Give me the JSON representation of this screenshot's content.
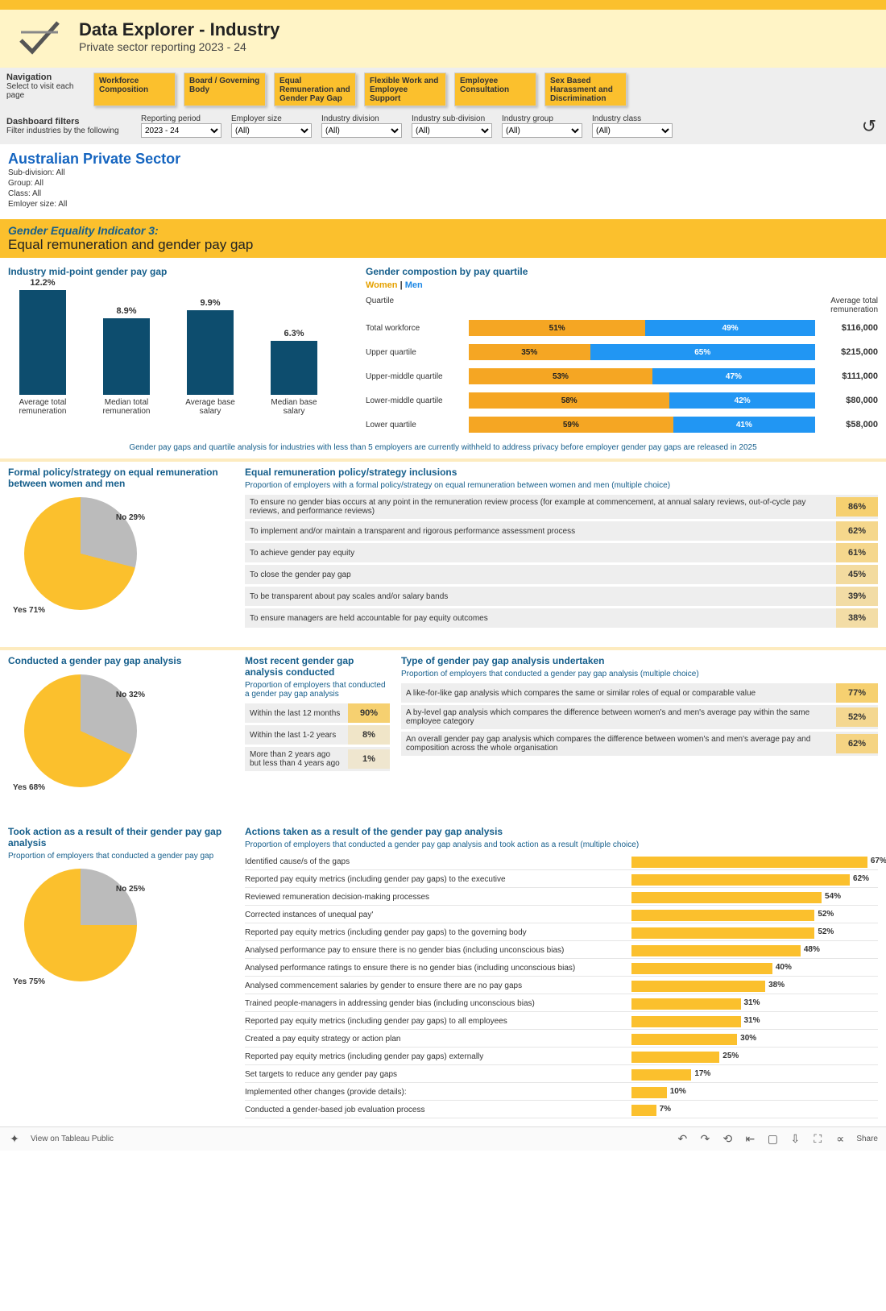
{
  "header": {
    "title": "Data Explorer - Industry",
    "subtitle": "Private sector reporting 2023 - 24"
  },
  "nav": {
    "label_title": "Navigation",
    "label_sub": "Select to visit each page",
    "tabs": [
      "Workforce Composition",
      "Board / Governing Body",
      "Equal Remuneration and Gender Pay Gap",
      "Flexible Work and Employee Support",
      "Employee Consultation",
      "Sex Based Harassment and Discrimination"
    ]
  },
  "filters": {
    "label_title": "Dashboard filters",
    "label_sub": "Filter industries by the following",
    "items": [
      {
        "label": "Reporting period",
        "value": "2023 - 24"
      },
      {
        "label": "Employer size",
        "value": "(All)"
      },
      {
        "label": "Industry division",
        "value": "(All)"
      },
      {
        "label": "Industry sub-division",
        "value": "(All)"
      },
      {
        "label": "Industry group",
        "value": "(All)"
      },
      {
        "label": "Industry class",
        "value": "(All)"
      }
    ]
  },
  "sector": {
    "title": "Australian Private Sector",
    "lines": [
      "Sub-division: All",
      "Group: All",
      "Class: All",
      "Emloyer size: All"
    ]
  },
  "gei": {
    "title": "Gender Equality Indicator 3:",
    "sub": "Equal remuneration and gender pay gap"
  },
  "midpoint": {
    "title": "Industry mid-point gender pay gap",
    "bars": [
      {
        "label": "Average total remuneration",
        "value": 12.2,
        "text": "12.2%"
      },
      {
        "label": "Median total remuneration",
        "value": 8.9,
        "text": "8.9%"
      },
      {
        "label": "Average base salary",
        "value": 9.9,
        "text": "9.9%"
      },
      {
        "label": "Median base salary",
        "value": 6.3,
        "text": "6.3%"
      }
    ],
    "max": 12.2,
    "bar_height_max": 130,
    "bar_color": "#0d4d6e"
  },
  "quartile": {
    "title": "Gender compostion by pay quartile",
    "legend_women": "Women",
    "legend_men": "Men",
    "head_quartile": "Quartile",
    "head_rem": "Average total remuneration",
    "rows": [
      {
        "label": "Total workforce",
        "women": 51,
        "men": 49,
        "rem": "$116,000"
      },
      {
        "label": "Upper quartile",
        "women": 35,
        "men": 65,
        "rem": "$215,000"
      },
      {
        "label": "Upper-middle quartile",
        "women": 53,
        "men": 47,
        "rem": "$111,000"
      },
      {
        "label": "Lower-middle quartile",
        "women": 58,
        "men": 42,
        "rem": "$80,000"
      },
      {
        "label": "Lower quartile",
        "women": 59,
        "men": 41,
        "rem": "$58,000"
      }
    ],
    "women_color": "#f5a623",
    "men_color": "#2196f3"
  },
  "privacy_note": "Gender pay gaps and quartile analysis for industries with less than 5 employers are currently withheld to address privacy before employer gender pay gaps are released in 2025",
  "policy_pie": {
    "title": "Formal policy/strategy on equal remuneration between women and men",
    "yes": 71,
    "no": 29,
    "yes_label": "Yes 71%",
    "no_label": "No 29%",
    "yes_color": "#fbc02d",
    "no_color": "#bbb"
  },
  "inclusions": {
    "title": "Equal remuneration policy/strategy inclusions",
    "sub": "Proportion of employers with a formal policy/strategy on equal remuneration between women and men (multiple choice)",
    "rows": [
      {
        "text": "To ensure no gender bias occurs at any point in the remuneration review process (for example at commencement, at annual salary reviews, out-of-cycle pay reviews, and performance reviews)",
        "pct": 86
      },
      {
        "text": "To implement and/or maintain a transparent and rigorous performance assessment process",
        "pct": 62
      },
      {
        "text": "To achieve gender pay equity",
        "pct": 61
      },
      {
        "text": "To close the gender pay gap",
        "pct": 45
      },
      {
        "text": "To be transparent about pay scales and/or salary bands",
        "pct": 39
      },
      {
        "text": "To ensure managers are held accountable for pay equity outcomes",
        "pct": 38
      }
    ],
    "pct_bg_hi": "#ffe9a6",
    "pct_bg_lo": "#ddd"
  },
  "conducted_pie": {
    "title": "Conducted a gender pay gap analysis",
    "yes": 68,
    "no": 32,
    "yes_label": "Yes 68%",
    "no_label": "No 32%",
    "yes_color": "#fbc02d",
    "no_color": "#bbb"
  },
  "recent": {
    "title": "Most recent gender gap analysis conducted",
    "sub": "Proportion of employers that conducted a gender pay gap analysis",
    "rows": [
      {
        "text": "Within the last 12 months",
        "pct": 90
      },
      {
        "text": "Within the last 1-2 years",
        "pct": 8
      },
      {
        "text": "More than 2 years ago but less than 4 years ago",
        "pct": 1
      }
    ]
  },
  "type_analysis": {
    "title": "Type of gender pay gap analysis undertaken",
    "sub": "Proportion of employers that conducted a gender pay gap analysis (multiple choice)",
    "rows": [
      {
        "text": "A like-for-like gap analysis which compares the same or similar roles of equal or comparable value",
        "pct": 77
      },
      {
        "text": "A by-level gap analysis which compares the difference between women's and men's average pay within the same employee category",
        "pct": 52
      },
      {
        "text": "An overall gender pay gap analysis which compares the difference between women's and men's average pay and composition across the whole organisation",
        "pct": 62
      }
    ]
  },
  "action_pie": {
    "title": "Took action as a result of their gender pay gap analysis",
    "sub": "Proportion of employers that conducted a gender pay gap",
    "yes": 75,
    "no": 25,
    "yes_label": "Yes 75%",
    "no_label": "No 25%",
    "yes_color": "#fbc02d",
    "no_color": "#bbb"
  },
  "actions": {
    "title": "Actions taken as a result of the gender pay gap analysis",
    "sub": "Proportion of employers that conducted a gender pay gap analysis and took action as a result (multiple choice)",
    "max": 70,
    "rows": [
      {
        "text": "Identified cause/s of the gaps",
        "pct": 67
      },
      {
        "text": "Reported pay equity metrics (including gender pay gaps) to the executive",
        "pct": 62
      },
      {
        "text": "Reviewed remuneration decision-making processes",
        "pct": 54
      },
      {
        "text": "Corrected instances of unequal pay'",
        "pct": 52
      },
      {
        "text": "Reported pay equity metrics (including gender pay gaps) to the governing body",
        "pct": 52
      },
      {
        "text": "Analysed performance pay to ensure there is no gender bias (including unconscious bias)",
        "pct": 48
      },
      {
        "text": "Analysed performance ratings to ensure there is no gender bias (including unconscious bias)",
        "pct": 40
      },
      {
        "text": "Analysed commencement salaries by gender to ensure there are no pay gaps",
        "pct": 38
      },
      {
        "text": "Trained people-managers in addressing gender bias (including unconscious bias)",
        "pct": 31
      },
      {
        "text": "Reported pay equity metrics (including gender pay gaps) to all employees",
        "pct": 31
      },
      {
        "text": "Created a pay equity strategy or action plan",
        "pct": 30
      },
      {
        "text": "Reported pay equity metrics (including gender pay gaps) externally",
        "pct": 25
      },
      {
        "text": "Set targets to reduce any gender pay gaps",
        "pct": 17
      },
      {
        "text": "Implemented other changes (provide details):",
        "pct": 10
      },
      {
        "text": "Conducted a gender-based job evaluation process",
        "pct": 7
      }
    ],
    "bar_color": "#fbc02d"
  },
  "footer": {
    "view": "View on Tableau Public",
    "share": "Share"
  }
}
